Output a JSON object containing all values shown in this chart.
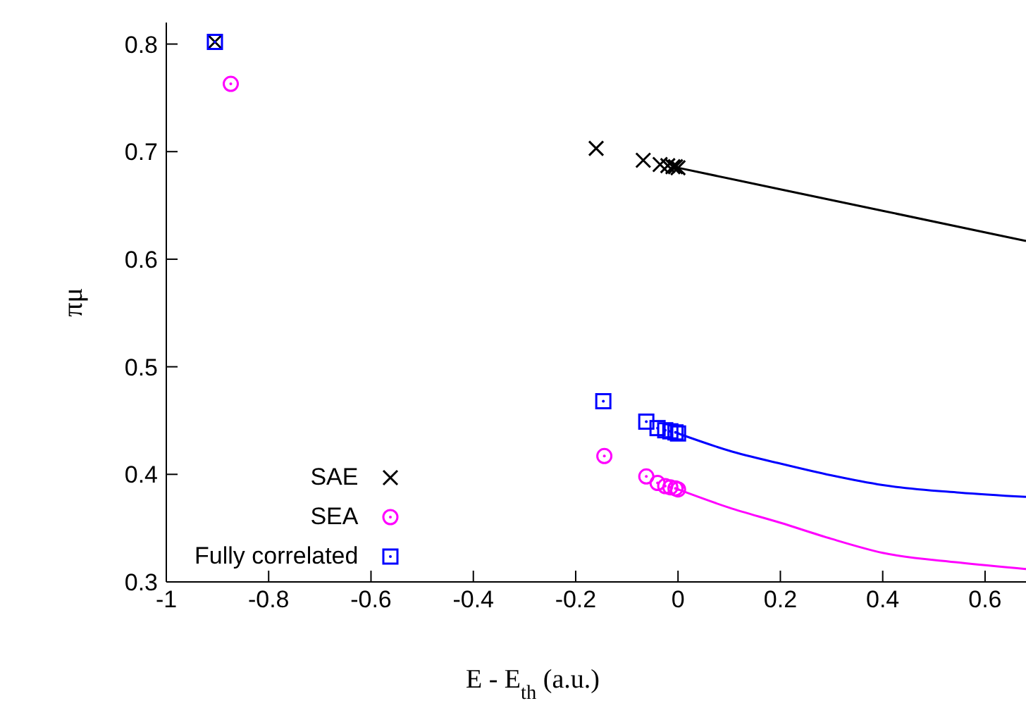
{
  "chart_data": {
    "type": "scatter",
    "xlabel": "E - E$_{th}$ (a.u.)",
    "ylabel": "πμ",
    "xlim": [
      -1,
      0.68
    ],
    "ylim": [
      0.3,
      0.82
    ],
    "xticks": [
      -1,
      -0.8,
      -0.6,
      -0.4,
      -0.2,
      0,
      0.2,
      0.4,
      0.6
    ],
    "yticks": [
      0.3,
      0.4,
      0.5,
      0.6,
      0.7,
      0.8
    ],
    "grid": false,
    "legend": "bottom left",
    "series": [
      {
        "name": "SAE",
        "color": "#000000",
        "marker": "cross",
        "x": [
          -0.905,
          -0.16,
          -0.068,
          -0.035,
          -0.02,
          -0.01,
          -0.005,
          0
        ],
        "values": [
          0.802,
          0.703,
          0.692,
          0.688,
          0.687,
          0.686,
          0.686,
          0.685
        ]
      },
      {
        "name": "SEA",
        "color": "#ff00ff",
        "marker": "circle",
        "x": [
          -0.874,
          -0.144,
          -0.062,
          -0.04,
          -0.025,
          -0.015,
          -0.005,
          0
        ],
        "values": [
          0.763,
          0.417,
          0.398,
          0.392,
          0.389,
          0.388,
          0.387,
          0.386
        ]
      },
      {
        "name": "Fully correlated",
        "color": "#0000ff",
        "marker": "square",
        "x": [
          -0.905,
          -0.146,
          -0.062,
          -0.04,
          -0.025,
          -0.015,
          -0.005,
          0
        ],
        "values": [
          0.802,
          0.468,
          0.449,
          0.443,
          0.441,
          0.44,
          0.439,
          0.438
        ]
      },
      {
        "type": "line",
        "color": "#000000",
        "x": [
          0,
          0.2,
          0.4,
          0.68
        ],
        "values": [
          0.685,
          0.665,
          0.645,
          0.617
        ]
      },
      {
        "type": "line",
        "color": "#ff00ff",
        "x": [
          0,
          0.1,
          0.2,
          0.3,
          0.4,
          0.55,
          0.68
        ],
        "values": [
          0.386,
          0.369,
          0.355,
          0.34,
          0.327,
          0.318,
          0.312
        ]
      },
      {
        "type": "line",
        "color": "#0000ff",
        "x": [
          0,
          0.1,
          0.2,
          0.3,
          0.4,
          0.55,
          0.68
        ],
        "values": [
          0.438,
          0.422,
          0.41,
          0.399,
          0.39,
          0.383,
          0.379
        ]
      }
    ]
  }
}
